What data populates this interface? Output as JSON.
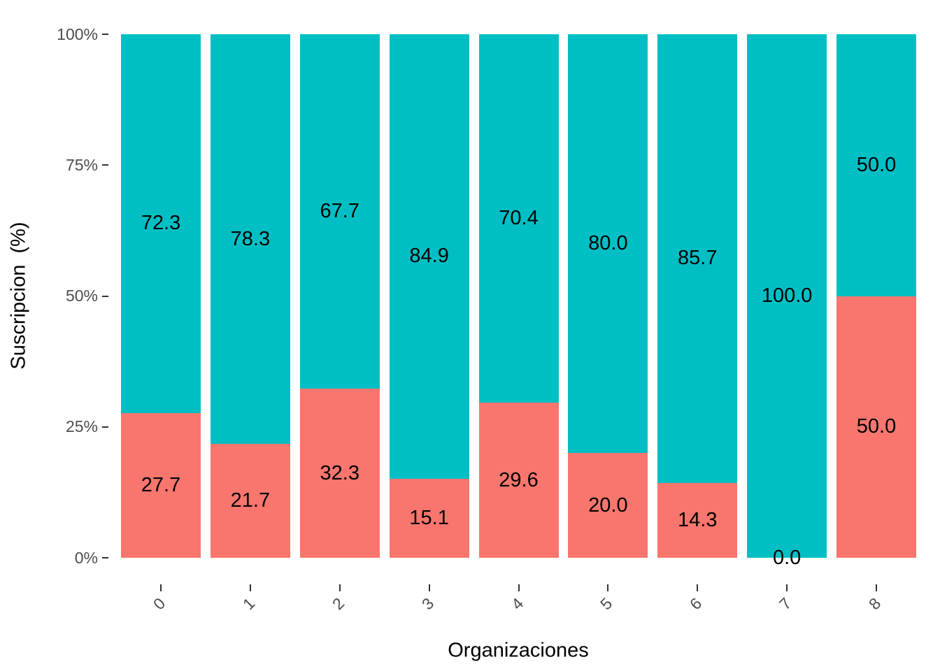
{
  "chart_data": {
    "type": "bar",
    "stacked": true,
    "percent_scale": true,
    "title": "",
    "xlabel": "Organizaciones",
    "ylabel": "Suscripcion  (%)",
    "categories": [
      "0",
      "1",
      "2",
      "3",
      "4",
      "5",
      "6",
      "7",
      "8"
    ],
    "series": [
      {
        "name": "bottom-segment-salmon",
        "color": "#F8766D",
        "values": [
          27.7,
          21.7,
          32.3,
          15.1,
          29.6,
          20.0,
          14.3,
          0.0,
          50.0
        ]
      },
      {
        "name": "top-segment-teal",
        "color": "#00BFC4",
        "values": [
          72.3,
          78.3,
          67.7,
          84.9,
          70.4,
          80.0,
          85.7,
          100.0,
          50.0
        ]
      }
    ],
    "bar_label_decimals": 1,
    "y_ticks": [
      {
        "label": "0%",
        "value": 0
      },
      {
        "label": "25%",
        "value": 25
      },
      {
        "label": "50%",
        "value": 50
      },
      {
        "label": "75%",
        "value": 75
      },
      {
        "label": "100%",
        "value": 100
      }
    ],
    "ylim": [
      0,
      100
    ],
    "grid": false,
    "legend_position": "none"
  },
  "colors": {
    "background": "#FFFFFF",
    "axis_text": "#4D4D4D",
    "axis_ticks": "#333333",
    "bar_label_text": "#000000",
    "axis_title_text": "#000000"
  }
}
